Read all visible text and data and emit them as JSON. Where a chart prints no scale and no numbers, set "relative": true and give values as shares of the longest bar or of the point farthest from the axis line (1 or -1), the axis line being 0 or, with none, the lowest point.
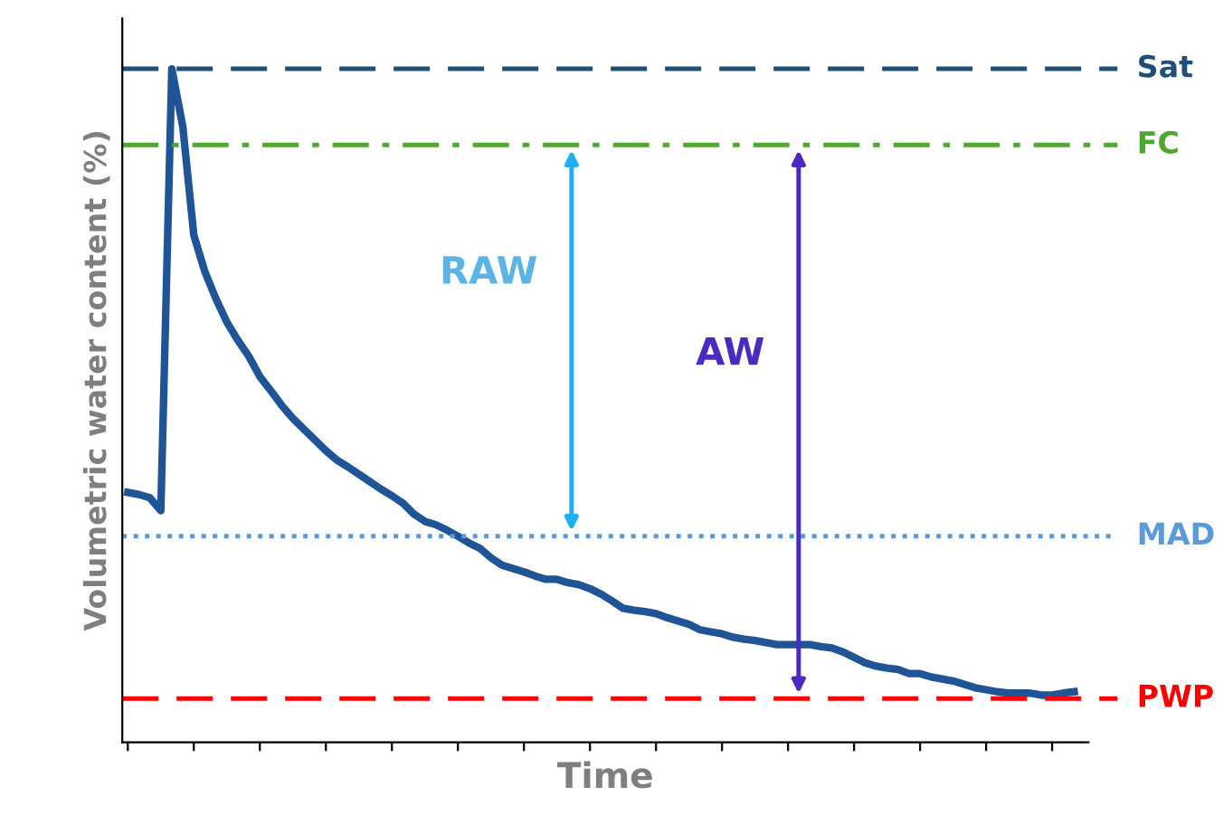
{
  "chart_data": {
    "type": "line",
    "relative": true,
    "xlabel": "Time",
    "ylabel": "Volumetric water content (%)",
    "categories": [
      null,
      null,
      null,
      null,
      null,
      null,
      null,
      null,
      null,
      null,
      null,
      null,
      null,
      null,
      null,
      null,
      null,
      null,
      null,
      null,
      null,
      null,
      null,
      null,
      null,
      null,
      null,
      null,
      null,
      null,
      null,
      null,
      null,
      null,
      null,
      null,
      null,
      null,
      null,
      null,
      null,
      null,
      null,
      null,
      null,
      null,
      null,
      null,
      null,
      null,
      null,
      null,
      null,
      null,
      null,
      null,
      null,
      null,
      null,
      null,
      null,
      null,
      null,
      null,
      null,
      null,
      null,
      null,
      null,
      null,
      null,
      null,
      null,
      null,
      null,
      null,
      null,
      null,
      null,
      null,
      null,
      null,
      null,
      null,
      null,
      null,
      null
    ],
    "series": [
      {
        "color": "#1f5597",
        "values": [
          0.371,
          0.368,
          0.363,
          0.344,
          1.0,
          0.914,
          0.753,
          0.699,
          0.659,
          0.624,
          0.597,
          0.573,
          0.543,
          0.522,
          0.5,
          0.481,
          0.465,
          0.449,
          0.433,
          0.419,
          0.409,
          0.398,
          0.387,
          0.376,
          0.366,
          0.355,
          0.339,
          0.328,
          0.323,
          0.315,
          0.306,
          0.296,
          0.288,
          0.274,
          0.263,
          0.258,
          0.253,
          0.247,
          0.242,
          0.242,
          0.237,
          0.234,
          0.228,
          0.22,
          0.21,
          0.199,
          0.196,
          0.194,
          0.191,
          0.185,
          0.18,
          0.175,
          0.167,
          0.164,
          0.161,
          0.156,
          0.153,
          0.151,
          0.148,
          0.145,
          0.145,
          0.145,
          0.145,
          0.142,
          0.14,
          0.134,
          0.126,
          0.118,
          0.113,
          0.11,
          0.108,
          0.102,
          0.102,
          0.097,
          0.094,
          0.091,
          0.086,
          0.081,
          0.078,
          0.075,
          0.073,
          0.073,
          0.073,
          0.07,
          0.07,
          0.073,
          0.075
        ]
      }
    ],
    "ref_lines": [
      {
        "axis": "y",
        "value": 1.0,
        "label": "Sat",
        "color": "#1f4e79",
        "line_style": "dashed"
      },
      {
        "axis": "y",
        "value": 0.887,
        "label": "FC",
        "color": "#4ea72e",
        "line_style": "dashdot"
      },
      {
        "axis": "y",
        "value": 0.306,
        "label": "MAD",
        "color": "#5b9bd5",
        "line_style": "dotted"
      },
      {
        "axis": "y",
        "value": 0.065,
        "label": "PWP",
        "color": "#ff0000",
        "line_style": "dashed"
      }
    ],
    "annotations": [
      "RAW",
      "AW"
    ],
    "grid": false,
    "legend": false
  }
}
